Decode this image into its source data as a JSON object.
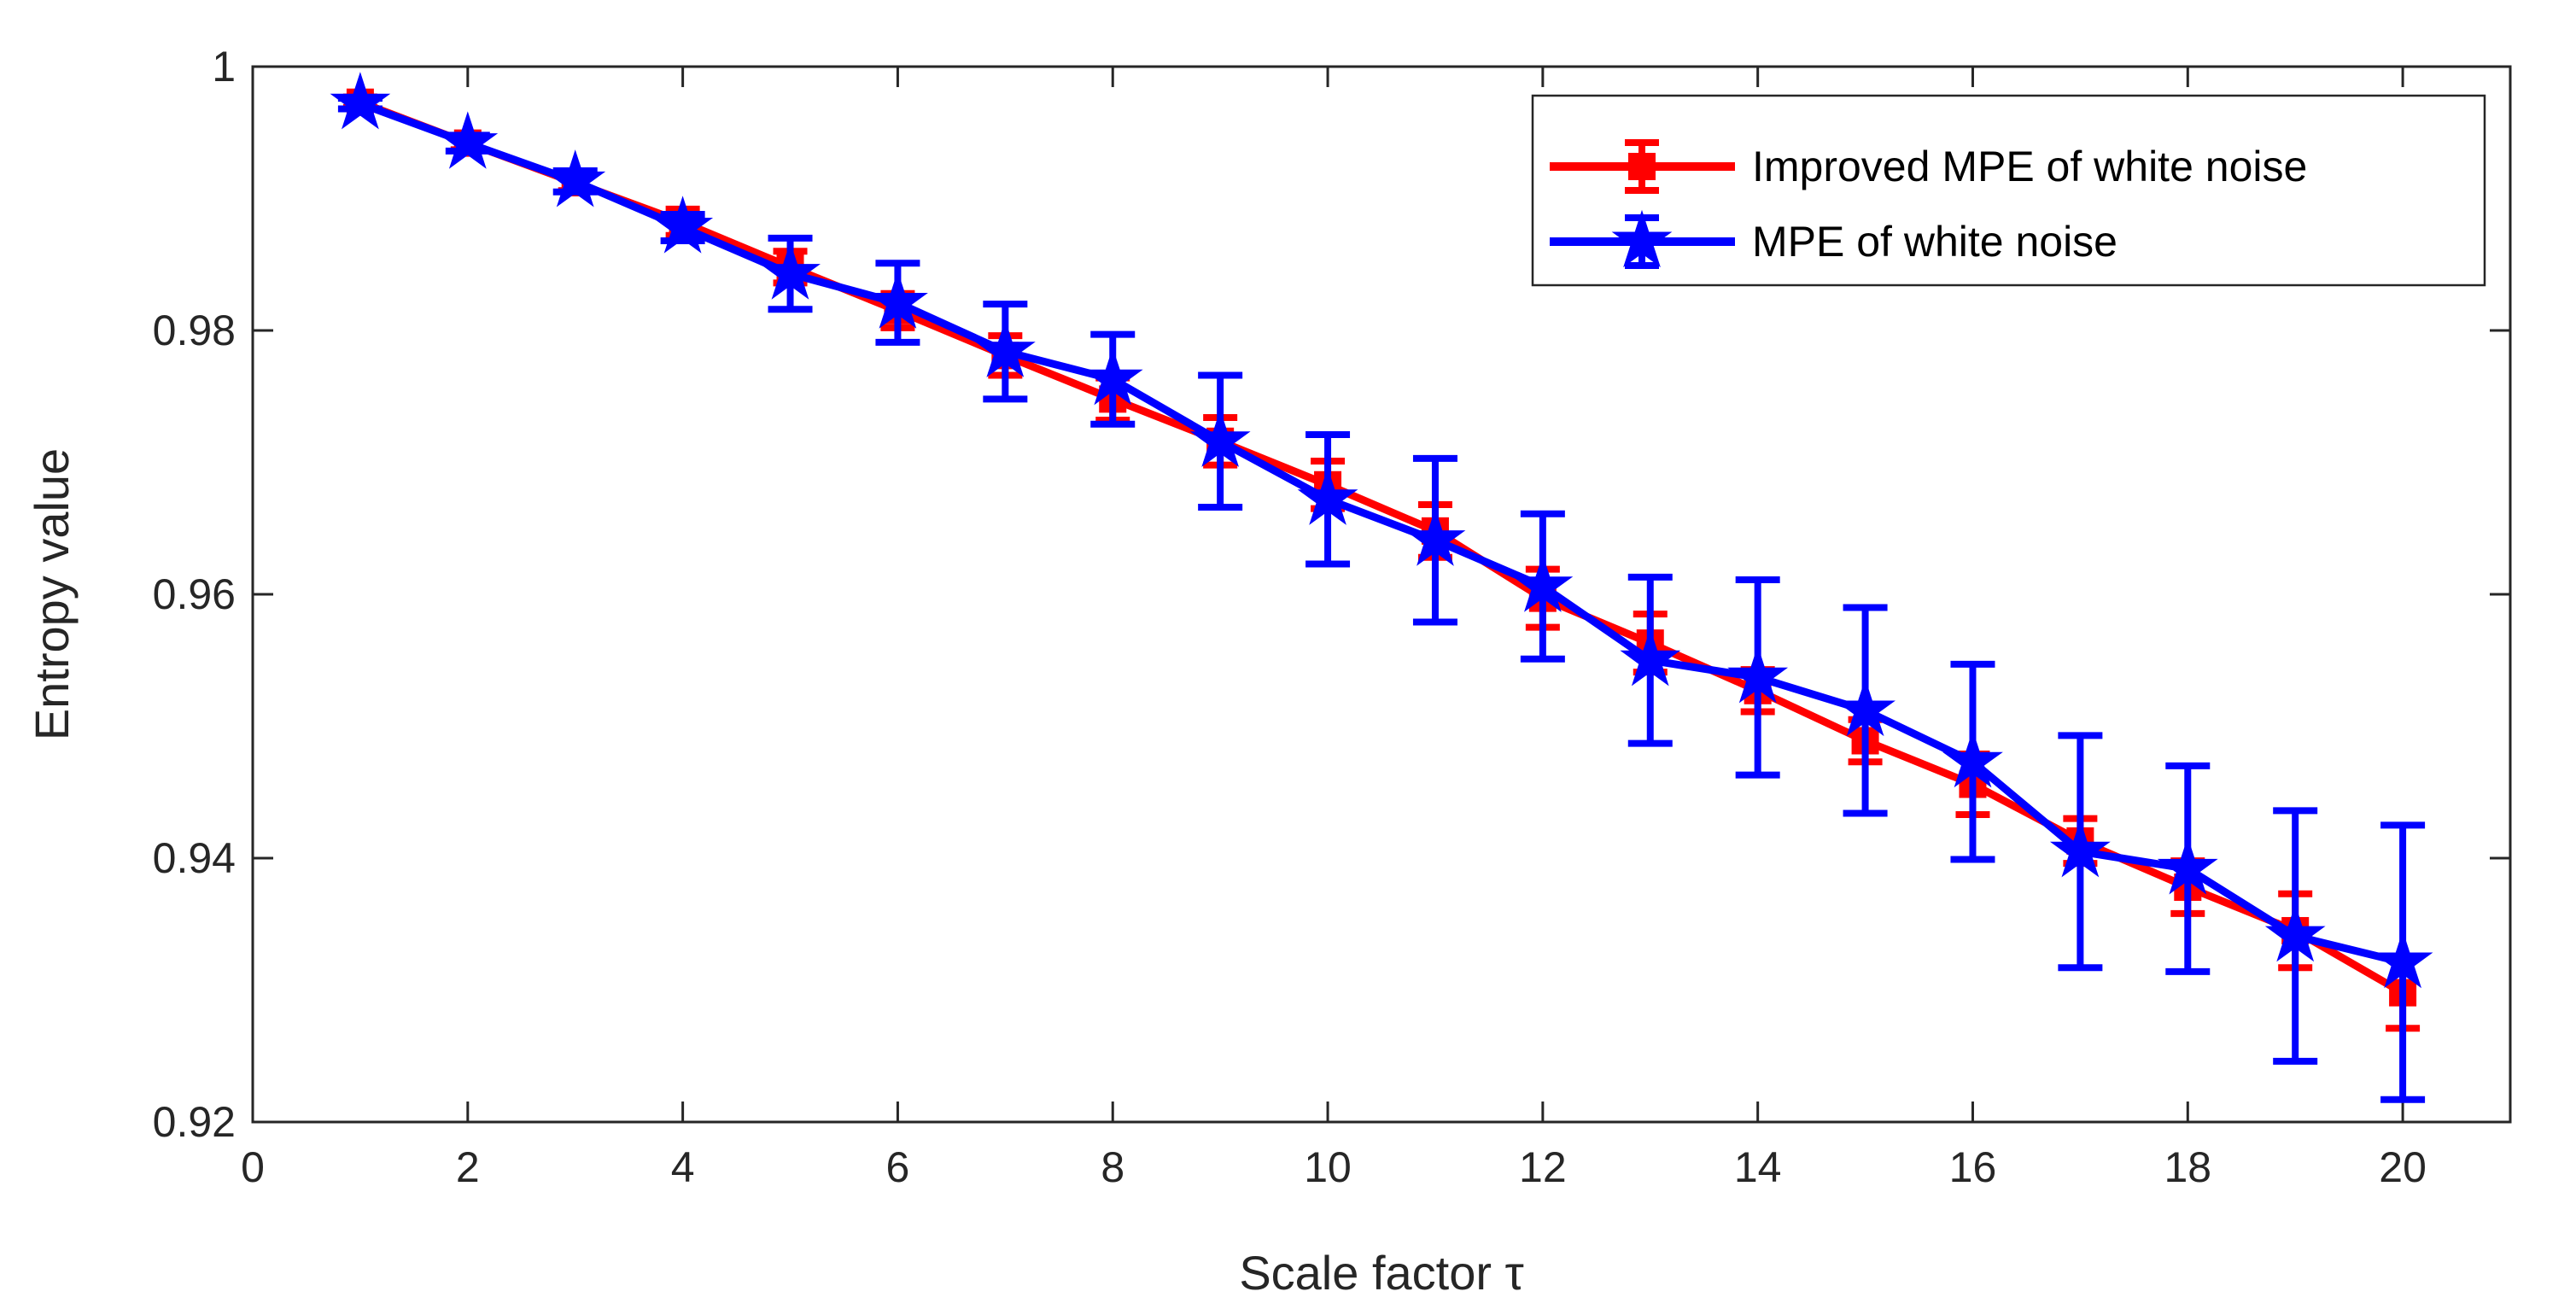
{
  "chart_data": {
    "type": "line",
    "xlabel": "Scale factor τ",
    "ylabel": "Entropy value",
    "xlim": [
      0,
      21
    ],
    "ylim": [
      0.92,
      1.0
    ],
    "xticks": [
      0,
      2,
      4,
      6,
      8,
      10,
      12,
      14,
      16,
      18,
      20
    ],
    "xtick_labels": [
      "0",
      "2",
      "4",
      "6",
      "8",
      "10",
      "12",
      "14",
      "16",
      "18",
      "20"
    ],
    "yticks": [
      0.92,
      0.94,
      0.96,
      0.98,
      1.0
    ],
    "ytick_labels": [
      "0.92",
      "0.94",
      "0.96",
      "0.98",
      "1"
    ],
    "grid": false,
    "legend_position": "top-right",
    "x": [
      1,
      2,
      3,
      4,
      5,
      6,
      7,
      8,
      9,
      10,
      11,
      12,
      13,
      14,
      15,
      16,
      17,
      18,
      19,
      20
    ],
    "series": [
      {
        "name": "Improved MPE of white noise",
        "color": "#ff0000",
        "marker": "square",
        "values": [
          0.9973,
          0.9942,
          0.9912,
          0.9882,
          0.9848,
          0.9815,
          0.9781,
          0.9748,
          0.9716,
          0.9683,
          0.9648,
          0.9597,
          0.9563,
          0.9527,
          0.9489,
          0.9456,
          0.9413,
          0.9378,
          0.9345,
          0.9298
        ],
        "errors": [
          0.0004,
          0.0005,
          0.0006,
          0.001,
          0.0012,
          0.0013,
          0.0015,
          0.0016,
          0.0018,
          0.0018,
          0.002,
          0.0022,
          0.0022,
          0.0016,
          0.0016,
          0.0023,
          0.0017,
          0.002,
          0.0028,
          0.0027
        ]
      },
      {
        "name": "MPE of white noise",
        "color": "#0000ff",
        "marker": "star",
        "values": [
          0.9972,
          0.9942,
          0.9913,
          0.9878,
          0.9843,
          0.9821,
          0.9784,
          0.9763,
          0.9716,
          0.9672,
          0.9641,
          0.9606,
          0.955,
          0.9537,
          0.9512,
          0.9473,
          0.9405,
          0.9392,
          0.9341,
          0.9321
        ],
        "errors": [
          0.0004,
          0.0006,
          0.0008,
          0.001,
          0.0027,
          0.003,
          0.0036,
          0.0034,
          0.005,
          0.0049,
          0.0062,
          0.0055,
          0.0063,
          0.0074,
          0.0078,
          0.0074,
          0.0088,
          0.0078,
          0.0095,
          0.0104
        ]
      }
    ]
  }
}
